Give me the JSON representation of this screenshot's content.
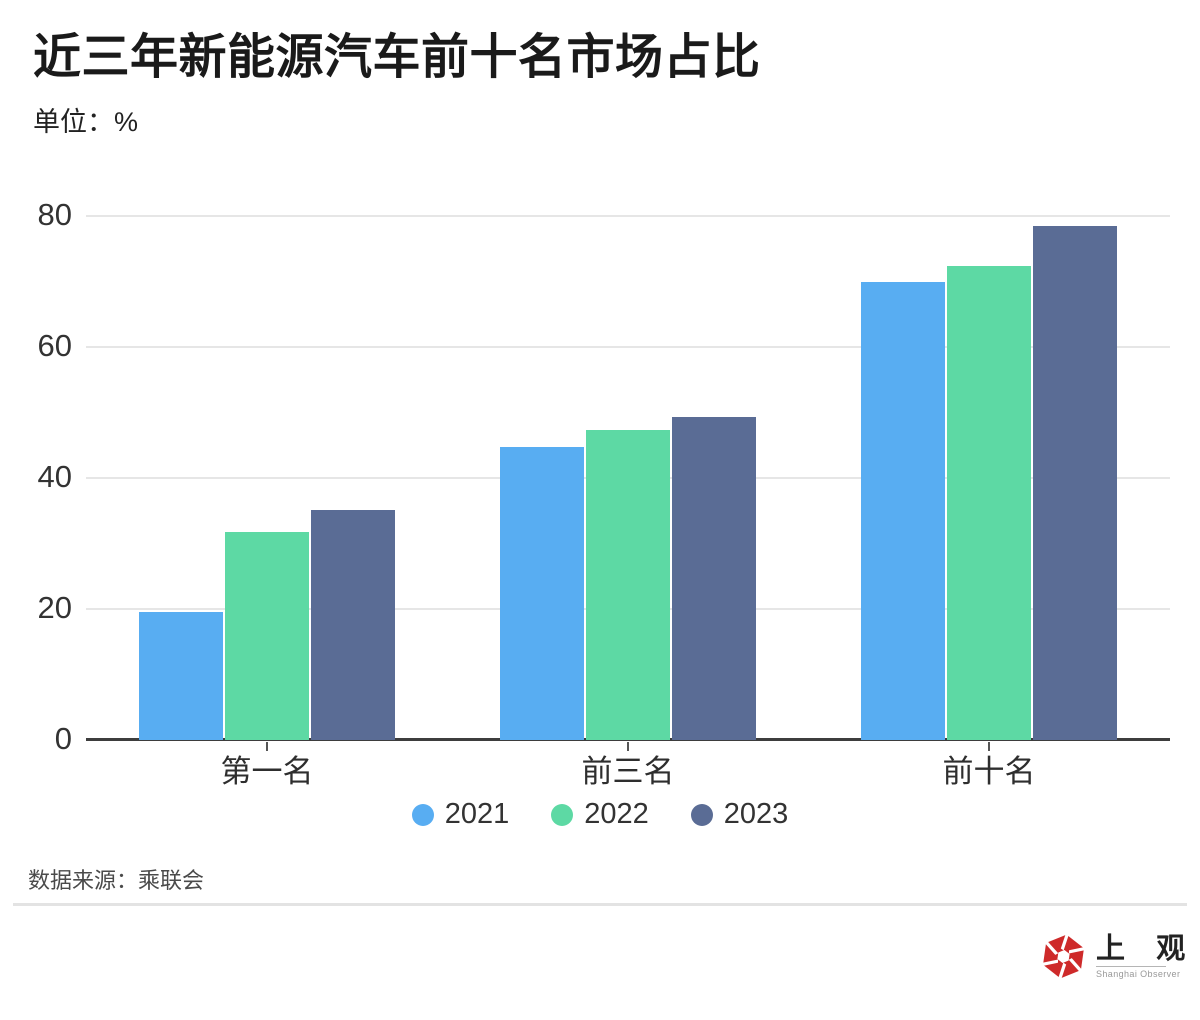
{
  "title": "近三年新能源汽车前十名市场占比",
  "unit_label": "单位：%",
  "source_label": "数据来源：乘联会",
  "logo": {
    "icon": "aperture-hexagon-icon",
    "icon_color": "#ce2a2a",
    "cn_name": "上 观",
    "en_name": "Shanghai Observer"
  },
  "colors": {
    "series_2021": "#58adf2",
    "series_2022": "#5dd9a4",
    "series_2023": "#5a6c95",
    "gridline": "#e6e6e6",
    "axis": "#3d3d3d",
    "text": "#333333"
  },
  "chart_data": {
    "type": "bar",
    "title": "近三年新能源汽车前十名市场占比",
    "ylabel": "单位：%",
    "categories": [
      "第一名",
      "前三名",
      "前十名"
    ],
    "series": [
      {
        "name": "2021",
        "color": "#58adf2",
        "values": [
          19.5,
          44.8,
          69.9
        ]
      },
      {
        "name": "2022",
        "color": "#5dd9a4",
        "values": [
          31.8,
          47.3,
          72.4
        ]
      },
      {
        "name": "2023",
        "color": "#5a6c95",
        "values": [
          35.1,
          49.3,
          78.4
        ]
      }
    ],
    "yticks": [
      0,
      20,
      40,
      60,
      80
    ],
    "ylim": [
      0,
      80
    ],
    "grid": true,
    "legend_position": "bottom"
  }
}
